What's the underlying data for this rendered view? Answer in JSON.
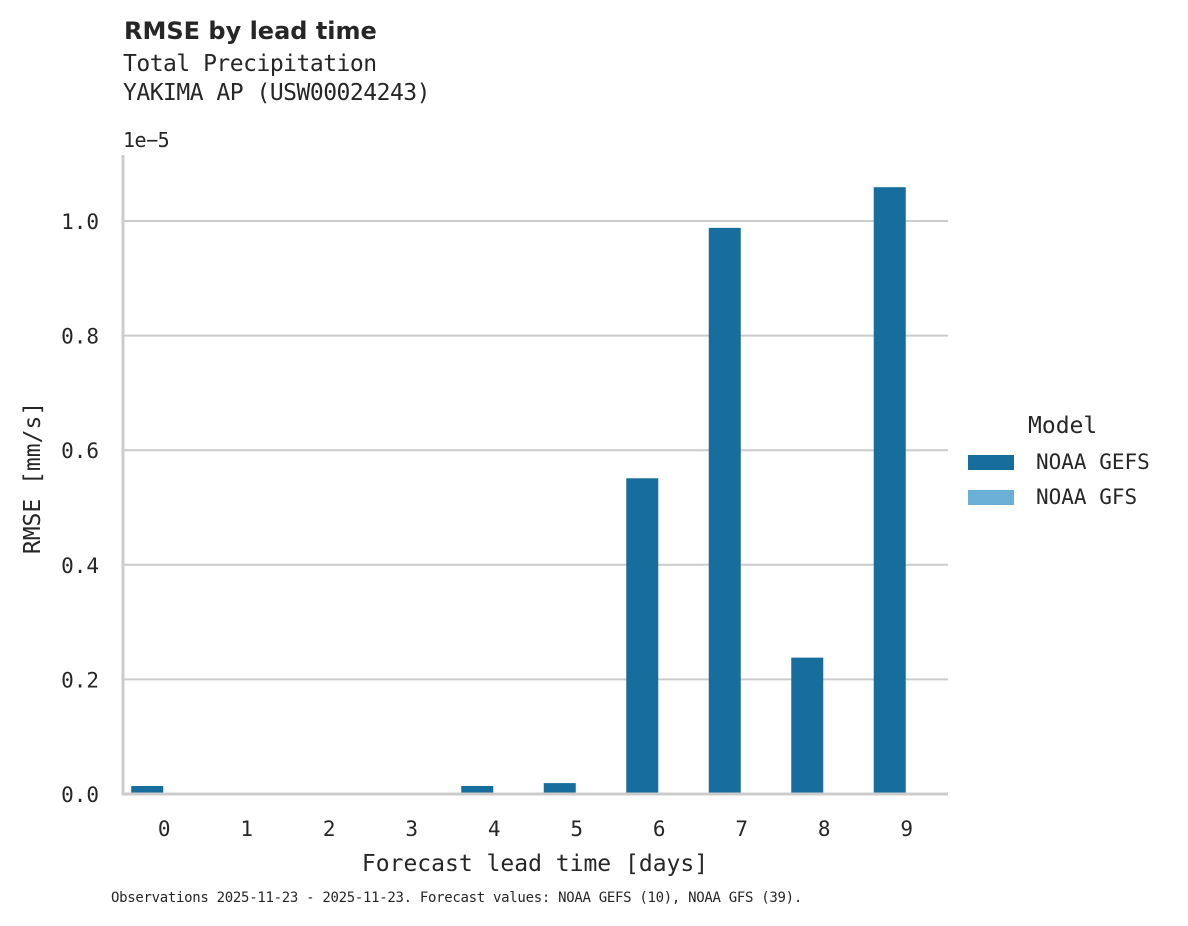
{
  "chart_data": {
    "type": "bar",
    "title": "RMSE by lead time",
    "subtitle": [
      "Total Precipitation",
      "YAKIMA AP (USW00024243)"
    ],
    "xlabel": "Forecast lead time [days]",
    "ylabel": "RMSE [mm/s]",
    "y_offset_label": "1e−5",
    "y_scale": 1e-05,
    "ylim": [
      0,
      1.11
    ],
    "yticks": [
      0.0,
      0.2,
      0.4,
      0.6,
      0.8,
      1.0
    ],
    "ytick_labels": [
      "0.0",
      "0.2",
      "0.4",
      "0.6",
      "0.8",
      "1.0"
    ],
    "categories": [
      "0",
      "1",
      "2",
      "3",
      "4",
      "5",
      "6",
      "7",
      "8",
      "9"
    ],
    "grid": "horizontal",
    "legend_position": "right",
    "legend_title": "Model",
    "series": [
      {
        "name": "NOAA GEFS",
        "color": "#176d9c",
        "values": [
          0.014,
          0.0,
          0.0,
          0.0,
          0.014,
          0.019,
          0.551,
          0.988,
          0.238,
          1.059
        ]
      },
      {
        "name": "NOAA GFS",
        "color": "#6baed6",
        "values": [
          0.0,
          0.0,
          0.0,
          0.0,
          0.0,
          0.0,
          0.0,
          0.0,
          0.0,
          0.0
        ]
      }
    ],
    "footnote": "Observations 2025-11-23 - 2025-11-23. Forecast values: NOAA GEFS (10), NOAA GFS (39)."
  }
}
